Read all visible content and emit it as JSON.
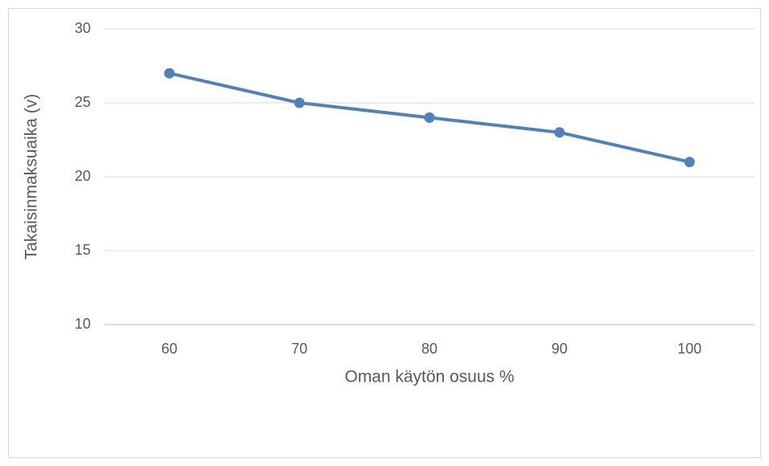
{
  "chart_data": {
    "type": "line",
    "x_label": "Oman käytön osuus %",
    "y_label": "Takaisinmaksuaika (v)",
    "categories": [
      "60",
      "70",
      "80",
      "90",
      "100"
    ],
    "series": [
      {
        "name": "Takaisinmaksuaika (v)",
        "color": "#4f81bd",
        "values": [
          27,
          25,
          24,
          23,
          21
        ]
      }
    ],
    "ylim": [
      10,
      30
    ],
    "yticks": [
      10,
      15,
      20,
      25,
      30
    ],
    "grid": true
  }
}
